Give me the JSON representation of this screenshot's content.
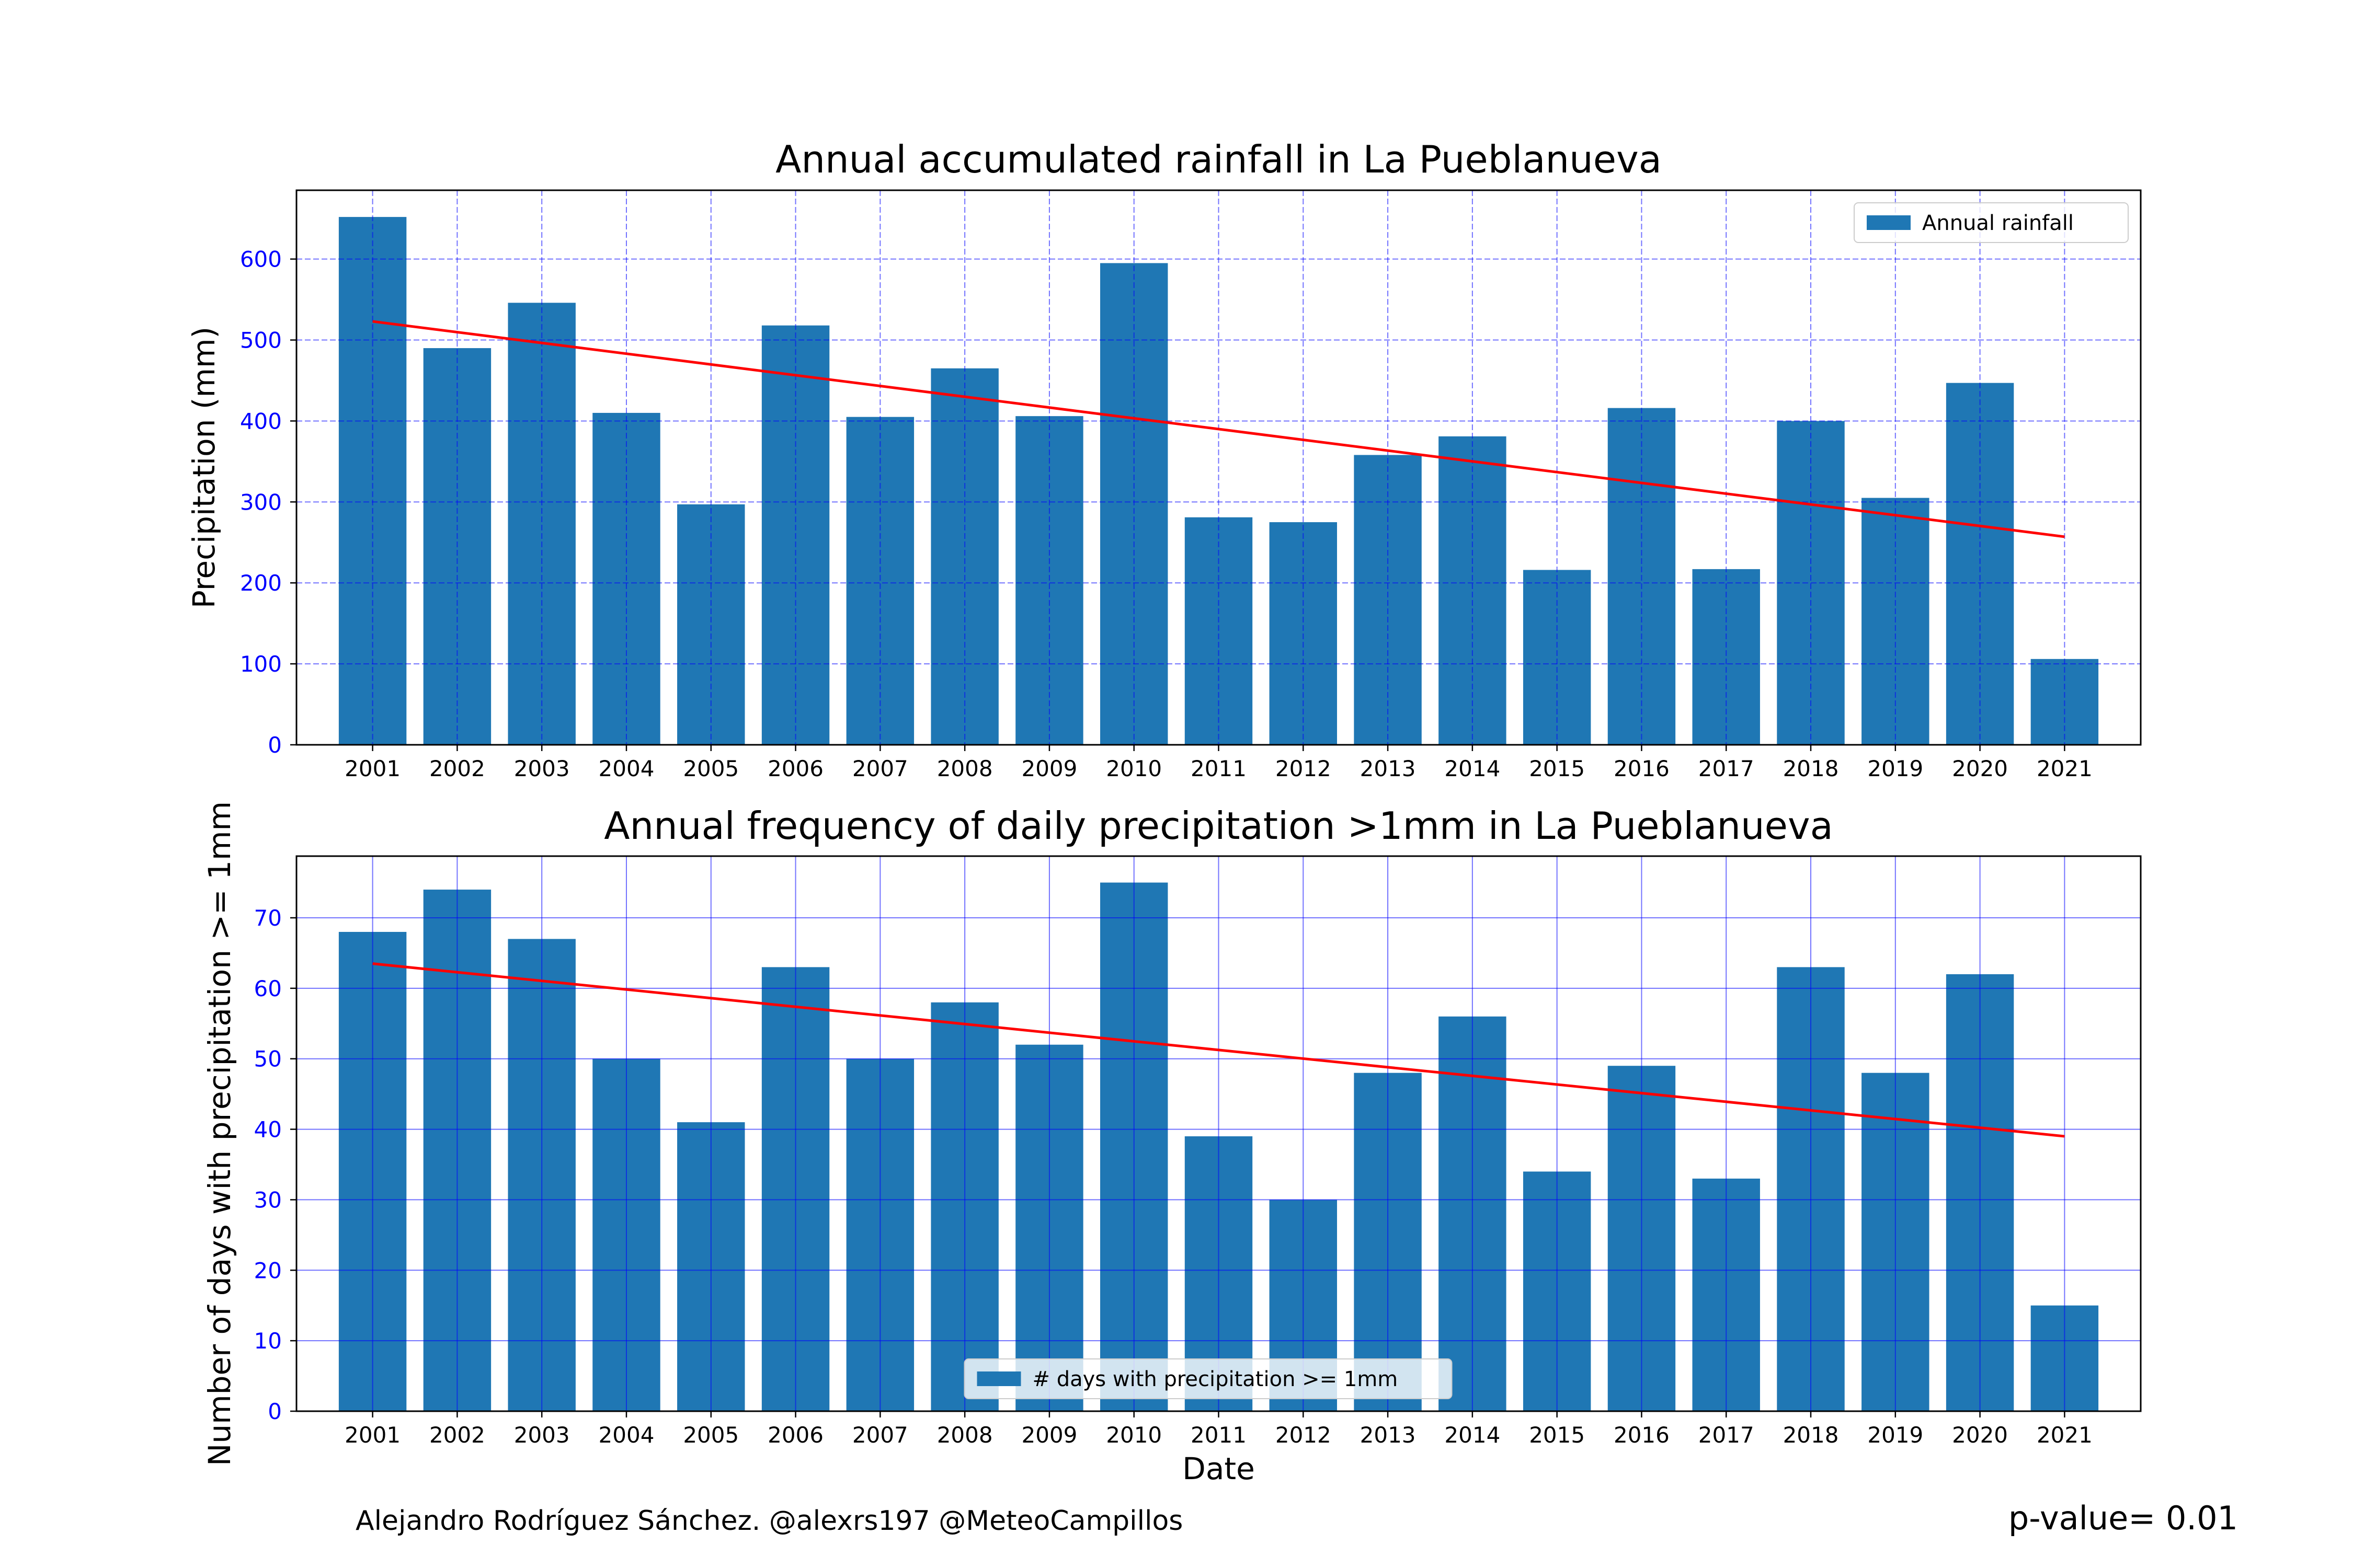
{
  "chart_data": [
    {
      "type": "bar",
      "title": "Annual accumulated rainfall in La Pueblanueva",
      "xlabel": "",
      "ylabel": "Precipitation (mm)",
      "categories": [
        "2001",
        "2002",
        "2003",
        "2004",
        "2005",
        "2006",
        "2007",
        "2008",
        "2009",
        "2010",
        "2011",
        "2012",
        "2013",
        "2014",
        "2015",
        "2016",
        "2017",
        "2018",
        "2019",
        "2020",
        "2021"
      ],
      "series": [
        {
          "name": "Annual rainfall",
          "values": [
            652,
            490,
            546,
            410,
            297,
            518,
            405,
            465,
            406,
            595,
            281,
            275,
            358,
            381,
            216,
            416,
            217,
            400,
            305,
            447,
            106
          ]
        }
      ],
      "trend": {
        "start": 523,
        "end": 257,
        "color": "#ff0000"
      },
      "ylim": [
        0,
        685
      ],
      "yticks": [
        0,
        100,
        200,
        300,
        400,
        500,
        600
      ],
      "grid": {
        "on": true,
        "style": "dashed",
        "color": "#0000ff"
      },
      "bar_color": "#1f77b4",
      "legend": "top-right"
    },
    {
      "type": "bar",
      "title": "Annual frequency of daily precipitation >1mm in La Pueblanueva",
      "xlabel": "Date",
      "ylabel": "Number of days with precipitation >= 1mm",
      "categories": [
        "2001",
        "2002",
        "2003",
        "2004",
        "2005",
        "2006",
        "2007",
        "2008",
        "2009",
        "2010",
        "2011",
        "2012",
        "2013",
        "2014",
        "2015",
        "2016",
        "2017",
        "2018",
        "2019",
        "2020",
        "2021"
      ],
      "series": [
        {
          "name": "# days with precipitation >= 1mm",
          "values": [
            68,
            74,
            67,
            50,
            41,
            63,
            50,
            58,
            52,
            75,
            39,
            30,
            48,
            56,
            34,
            49,
            33,
            63,
            48,
            62,
            15
          ]
        }
      ],
      "trend": {
        "start": 63.5,
        "end": 39,
        "color": "#ff0000"
      },
      "ylim": [
        0,
        78.75
      ],
      "yticks": [
        0,
        10,
        20,
        30,
        40,
        50,
        60,
        70
      ],
      "grid": {
        "on": true,
        "style": "solid",
        "color": "#0000ff"
      },
      "bar_color": "#1f77b4",
      "legend": "bottom-center"
    }
  ],
  "footer": {
    "credit": "Alejandro Rodríguez Sánchez. @alexrs197 @MeteoCampillos",
    "pvalue": "p-value= 0.01"
  }
}
